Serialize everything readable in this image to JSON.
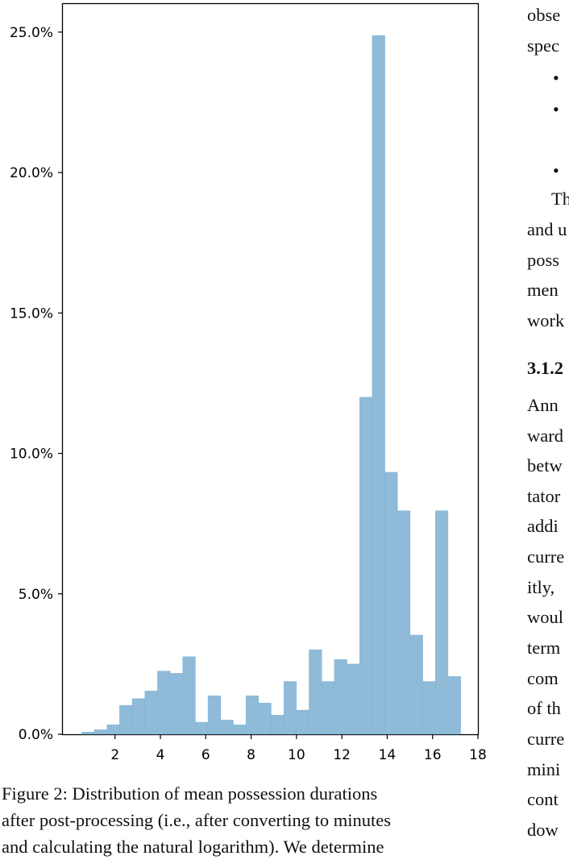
{
  "chart_data": {
    "type": "bar",
    "title": "",
    "xlabel": "",
    "ylabel": "",
    "xlim": [
      -0.3,
      18
    ],
    "ylim": [
      0,
      0.26
    ],
    "x_ticks": [
      2,
      4,
      6,
      8,
      10,
      12,
      14,
      16,
      18
    ],
    "y_ticks": [
      0,
      0.05,
      0.1,
      0.15,
      0.2,
      0.25
    ],
    "y_tick_labels": [
      "0.0%",
      "5.0%",
      "10.0%",
      "15.0%",
      "20.0%",
      "25.0%"
    ],
    "grid": false,
    "bar_color": "#8fbbd9",
    "bin_width": 0.557,
    "bins": [
      {
        "x0": 0.53,
        "value": 0.0008
      },
      {
        "x0": 1.087,
        "value": 0.0016
      },
      {
        "x0": 1.644,
        "value": 0.0034
      },
      {
        "x0": 2.201,
        "value": 0.0103
      },
      {
        "x0": 2.758,
        "value": 0.0127
      },
      {
        "x0": 3.315,
        "value": 0.0154
      },
      {
        "x0": 3.872,
        "value": 0.0225
      },
      {
        "x0": 4.429,
        "value": 0.0217
      },
      {
        "x0": 4.986,
        "value": 0.0276
      },
      {
        "x0": 5.543,
        "value": 0.0043
      },
      {
        "x0": 6.1,
        "value": 0.0137
      },
      {
        "x0": 6.657,
        "value": 0.0051
      },
      {
        "x0": 7.214,
        "value": 0.0034
      },
      {
        "x0": 7.771,
        "value": 0.0137
      },
      {
        "x0": 8.328,
        "value": 0.0111
      },
      {
        "x0": 8.885,
        "value": 0.0068
      },
      {
        "x0": 9.442,
        "value": 0.0188
      },
      {
        "x0": 9.999,
        "value": 0.0086
      },
      {
        "x0": 10.556,
        "value": 0.0301
      },
      {
        "x0": 11.113,
        "value": 0.0188
      },
      {
        "x0": 11.67,
        "value": 0.0266
      },
      {
        "x0": 12.227,
        "value": 0.025
      },
      {
        "x0": 12.784,
        "value": 0.12
      },
      {
        "x0": 13.341,
        "value": 0.2488
      },
      {
        "x0": 13.898,
        "value": 0.0933
      },
      {
        "x0": 14.455,
        "value": 0.0796
      },
      {
        "x0": 15.012,
        "value": 0.0353
      },
      {
        "x0": 15.569,
        "value": 0.0188
      },
      {
        "x0": 16.126,
        "value": 0.0796
      },
      {
        "x0": 16.683,
        "value": 0.0206
      }
    ]
  },
  "caption": {
    "line1": "Figure 2: Distribution of mean possession durations",
    "line2": "after post-processing (i.e., after converting to minutes",
    "line3": "and calculating the natural logarithm). We determine"
  },
  "right_column": {
    "lines": [
      "obse",
      "spec",
      "•",
      "•",
      "•",
      "Th",
      "and u",
      "poss",
      "men",
      "work",
      "3.1.2",
      "Ann",
      "ward",
      "betw",
      "tator",
      "addi",
      "curre",
      "itly,",
      "woul",
      "term",
      "com",
      "of th",
      "curre",
      "mini",
      "cont",
      "dow"
    ]
  }
}
